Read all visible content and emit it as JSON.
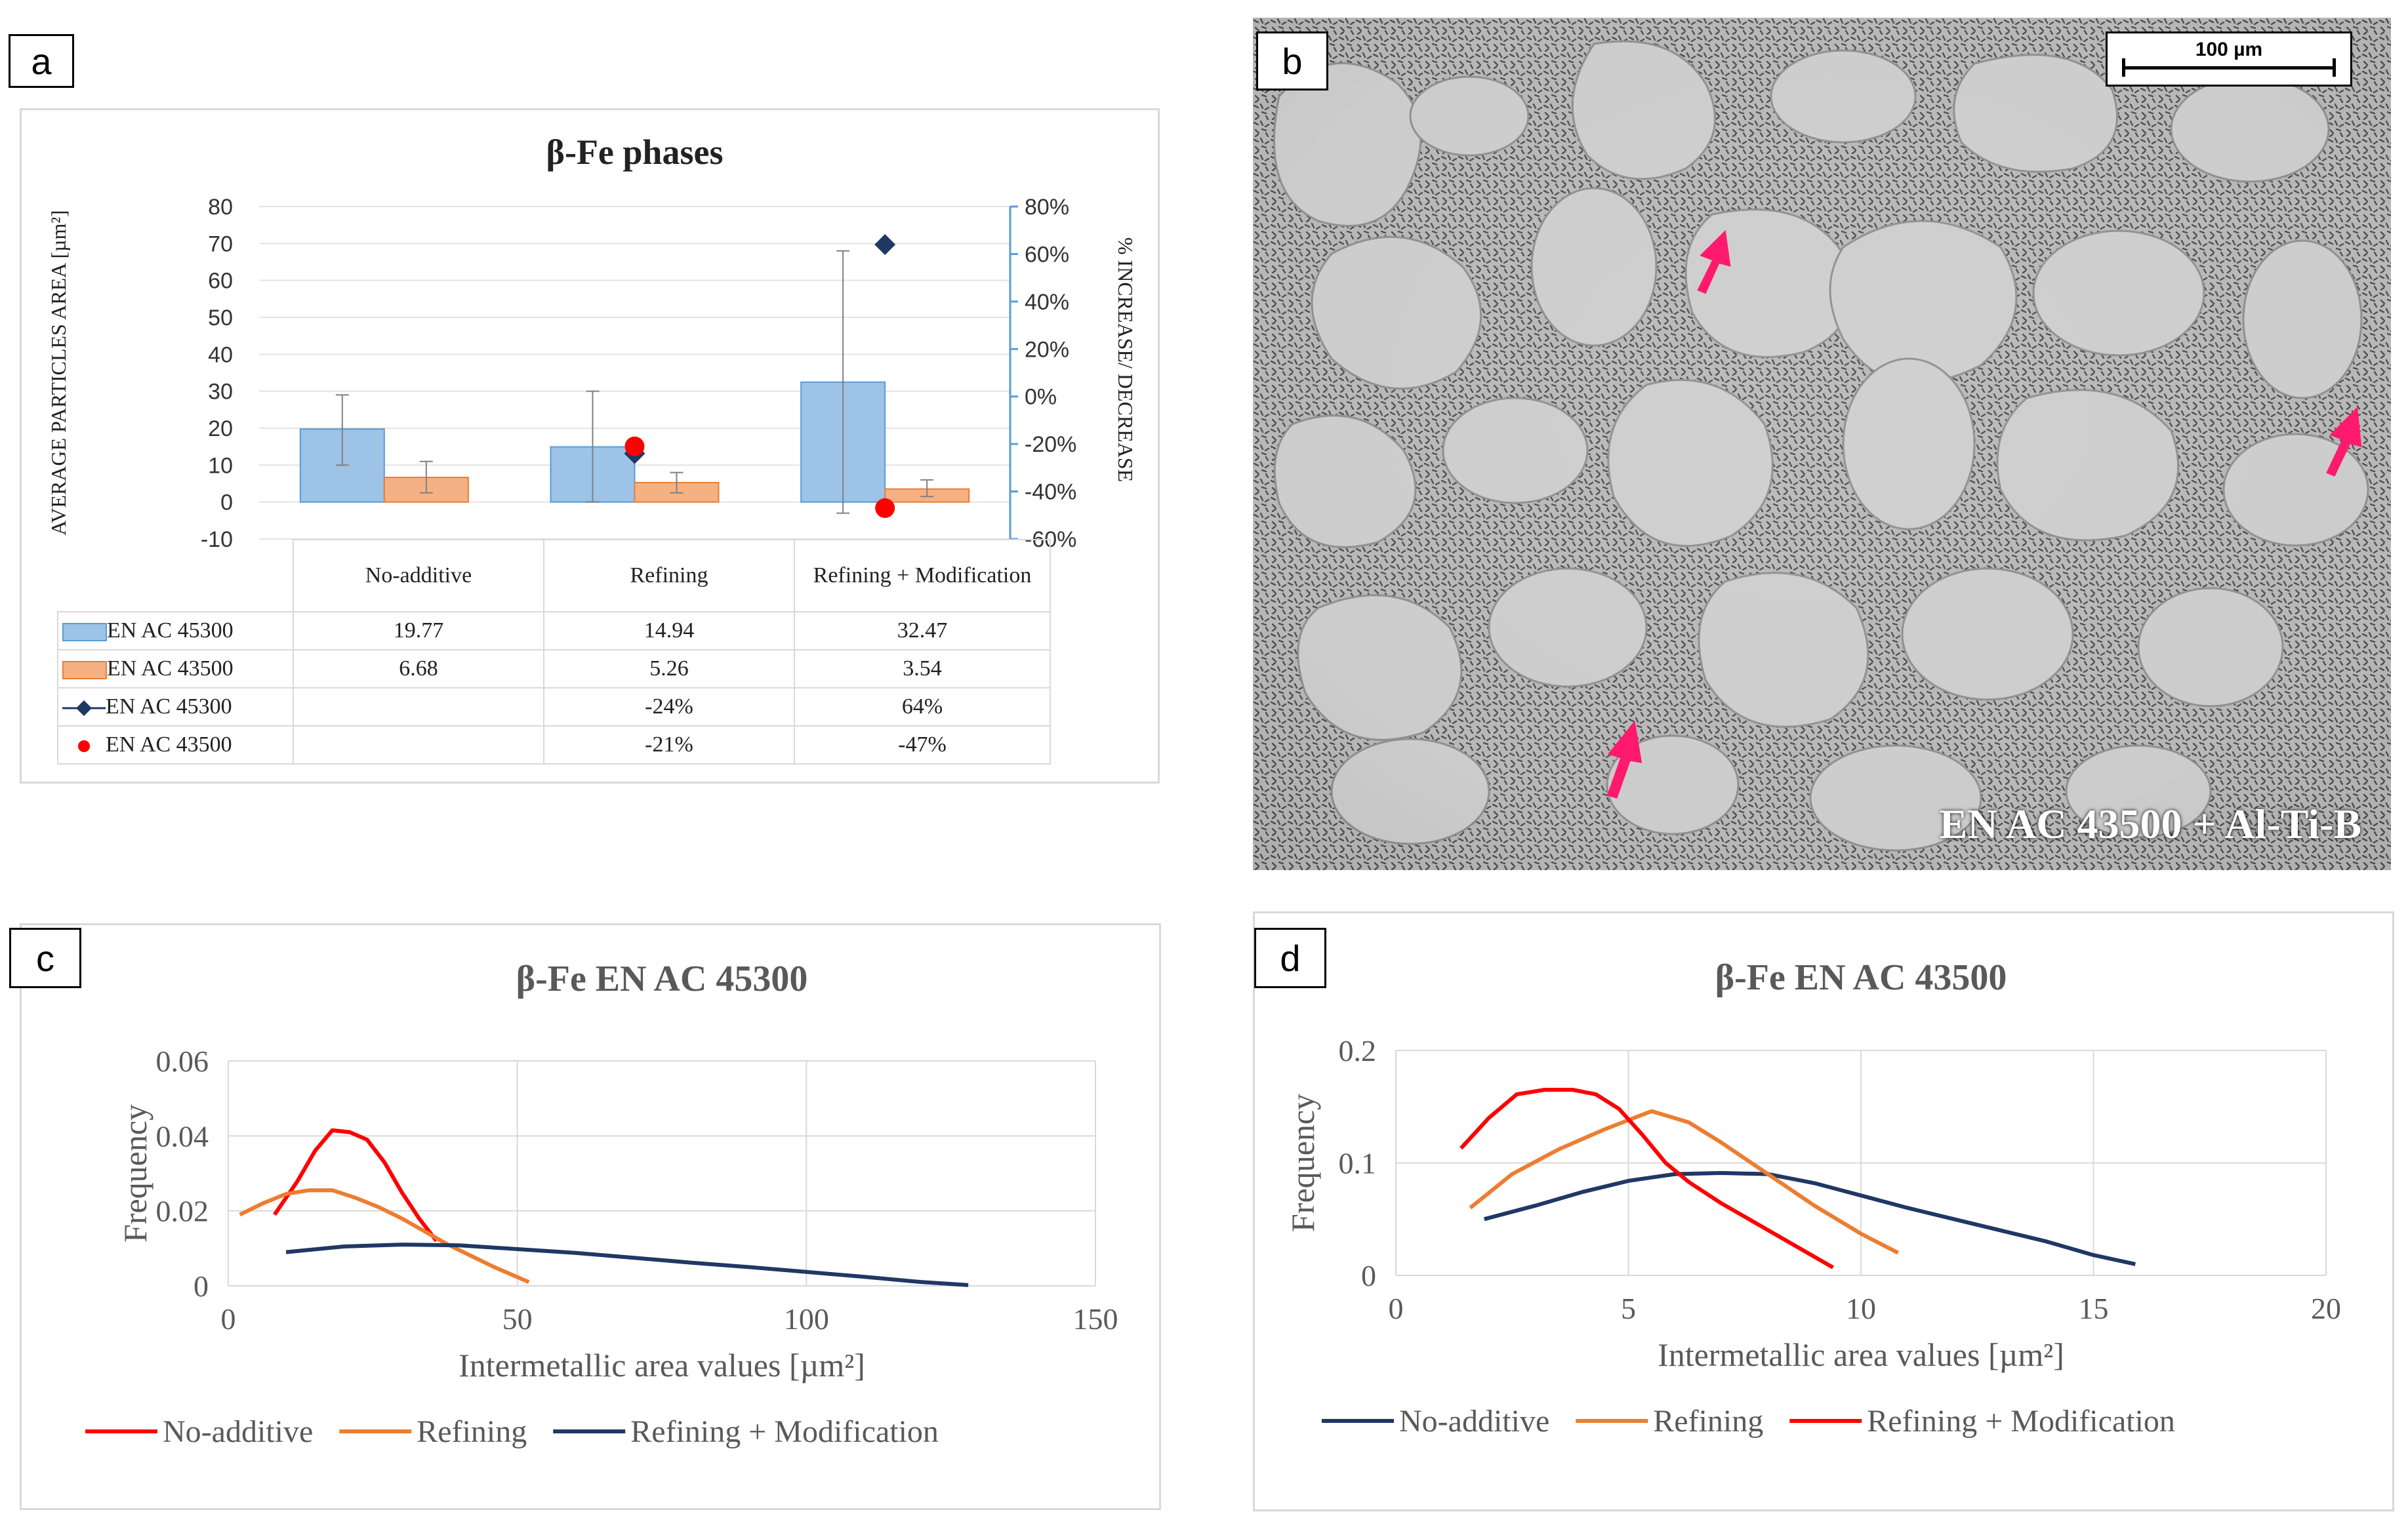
{
  "panels": {
    "a": {
      "letter": "a",
      "title": "β-Fe phases",
      "y_left_label": "AVERAGE PARTICLES AREA [µm²]",
      "y_right_label": "% INCREASE/ DECREASE",
      "categories": [
        "No-additive",
        "Refining",
        "Refining + Modification"
      ],
      "table_rows": [
        {
          "label": "EN AC 45300",
          "marker": "bar",
          "color": "#9dc3e6",
          "cells": [
            "19.77",
            "14.94",
            "32.47"
          ]
        },
        {
          "label": "EN AC 43500",
          "marker": "bar",
          "color": "#f4b183",
          "cells": [
            "6.68",
            "5.26",
            "3.54"
          ]
        },
        {
          "label": "EN AC 45300",
          "marker": "diamond",
          "color": "#1f3864",
          "cells": [
            "",
            "-24%",
            "64%"
          ]
        },
        {
          "label": "EN AC 43500",
          "marker": "dot",
          "color": "#ff0000",
          "cells": [
            "",
            "-21%",
            "-47%"
          ]
        }
      ]
    },
    "b": {
      "letter": "b",
      "scale_bar": "100 µm",
      "caption": "EN AC 43500 + Al-Ti-B"
    },
    "c": {
      "letter": "c"
    },
    "d": {
      "letter": "d"
    }
  },
  "chart_data": [
    {
      "panel": "a",
      "type": "bar",
      "title": "β-Fe phases",
      "categories": [
        "No-additive",
        "Refining",
        "Refining + Modification"
      ],
      "ylabel": "AVERAGE PARTICLES AREA [µm²]",
      "ylim": [
        -10,
        80
      ],
      "yticks": [
        -10,
        0,
        10,
        20,
        30,
        40,
        50,
        60,
        70,
        80
      ],
      "y2label": "% INCREASE/ DECREASE",
      "y2lim": [
        -60,
        80
      ],
      "y2ticks": [
        "-60%",
        "-40%",
        "-20%",
        "0%",
        "20%",
        "40%",
        "60%",
        "80%"
      ],
      "series": [
        {
          "name": "EN AC 45300",
          "kind": "bar",
          "color": "#9dc3e6",
          "values": [
            19.77,
            14.94,
            32.47
          ],
          "err_low": [
            10,
            0,
            -3
          ],
          "err_high": [
            29,
            30,
            68
          ]
        },
        {
          "name": "EN AC 43500",
          "kind": "bar",
          "color": "#f4b183",
          "values": [
            6.68,
            5.26,
            3.54
          ],
          "err_low": [
            2.5,
            2.5,
            1.5
          ],
          "err_high": [
            11,
            8,
            6
          ]
        },
        {
          "name": "EN AC 45300",
          "kind": "marker",
          "marker": "diamond",
          "color": "#1f3864",
          "axis": "right",
          "values": [
            null,
            -24,
            64
          ]
        },
        {
          "name": "EN AC 43500",
          "kind": "marker",
          "marker": "dot",
          "color": "#ff0000",
          "axis": "right",
          "values": [
            null,
            -21,
            -47
          ]
        }
      ],
      "grid": true
    },
    {
      "panel": "c",
      "type": "line",
      "title": "β-Fe EN AC 45300",
      "xlabel": "Intermetallic area values [µm²]",
      "ylabel": "Frequency",
      "xlim": [
        0,
        150
      ],
      "ylim": [
        0,
        0.06
      ],
      "xticks": [
        "0",
        "50",
        "100",
        "150"
      ],
      "yticks": [
        "0",
        "0.02",
        "0.04",
        "0.06"
      ],
      "legend_position": "bottom",
      "series": [
        {
          "name": "No-additive",
          "color": "#ff0000",
          "x": [
            8,
            12,
            15,
            18,
            21,
            24,
            27,
            30,
            33,
            36
          ],
          "y": [
            0.019,
            0.028,
            0.036,
            0.0415,
            0.041,
            0.039,
            0.033,
            0.025,
            0.018,
            0.012
          ]
        },
        {
          "name": "Refining",
          "color": "#ed7d31",
          "x": [
            2,
            6,
            10,
            14,
            18,
            22,
            26,
            30,
            34,
            38,
            42,
            46,
            52
          ],
          "y": [
            0.019,
            0.022,
            0.0245,
            0.0255,
            0.0255,
            0.0235,
            0.021,
            0.018,
            0.0145,
            0.011,
            0.008,
            0.005,
            0.001
          ]
        },
        {
          "name": "Refining + Modification",
          "color": "#1f3864",
          "x": [
            10,
            20,
            30,
            40,
            50,
            60,
            70,
            80,
            90,
            100,
            110,
            120,
            128
          ],
          "y": [
            0.009,
            0.0105,
            0.011,
            0.0108,
            0.0098,
            0.0088,
            0.0075,
            0.0062,
            0.005,
            0.0037,
            0.0024,
            0.001,
            0.0002
          ]
        }
      ],
      "grid": true
    },
    {
      "panel": "d",
      "type": "line",
      "title": "β-Fe EN AC 43500",
      "xlabel": "Intermetallic area values [µm²]",
      "ylabel": "Frequency",
      "xlim": [
        0,
        20
      ],
      "ylim": [
        0,
        0.2
      ],
      "xticks": [
        "0",
        "5",
        "10",
        "15",
        "20"
      ],
      "yticks": [
        "0",
        "0.1",
        "0.2"
      ],
      "legend_position": "bottom",
      "series": [
        {
          "name": "No-additive",
          "color": "#1f3864",
          "x": [
            1.9,
            3,
            4,
            5,
            6,
            7,
            8,
            9,
            10,
            11,
            12,
            13,
            14,
            15,
            15.9
          ],
          "y": [
            0.05,
            0.062,
            0.074,
            0.084,
            0.09,
            0.091,
            0.09,
            0.082,
            0.071,
            0.06,
            0.05,
            0.04,
            0.03,
            0.018,
            0.01
          ]
        },
        {
          "name": "Refining",
          "color": "#ed7d31",
          "x": [
            1.6,
            2.5,
            3.5,
            4.5,
            5.5,
            6.3,
            7,
            8,
            9,
            10,
            10.8
          ],
          "y": [
            0.06,
            0.09,
            0.112,
            0.13,
            0.146,
            0.136,
            0.118,
            0.09,
            0.062,
            0.037,
            0.02
          ]
        },
        {
          "name": "Refining + Modification",
          "color": "#ff0000",
          "x": [
            1.4,
            2,
            2.6,
            3.2,
            3.8,
            4.3,
            4.8,
            5.3,
            5.8,
            6.3,
            7,
            7.8,
            8.6,
            9.4
          ],
          "y": [
            0.113,
            0.14,
            0.161,
            0.165,
            0.165,
            0.161,
            0.148,
            0.125,
            0.1,
            0.083,
            0.064,
            0.045,
            0.026,
            0.007
          ]
        }
      ],
      "grid": true
    }
  ]
}
